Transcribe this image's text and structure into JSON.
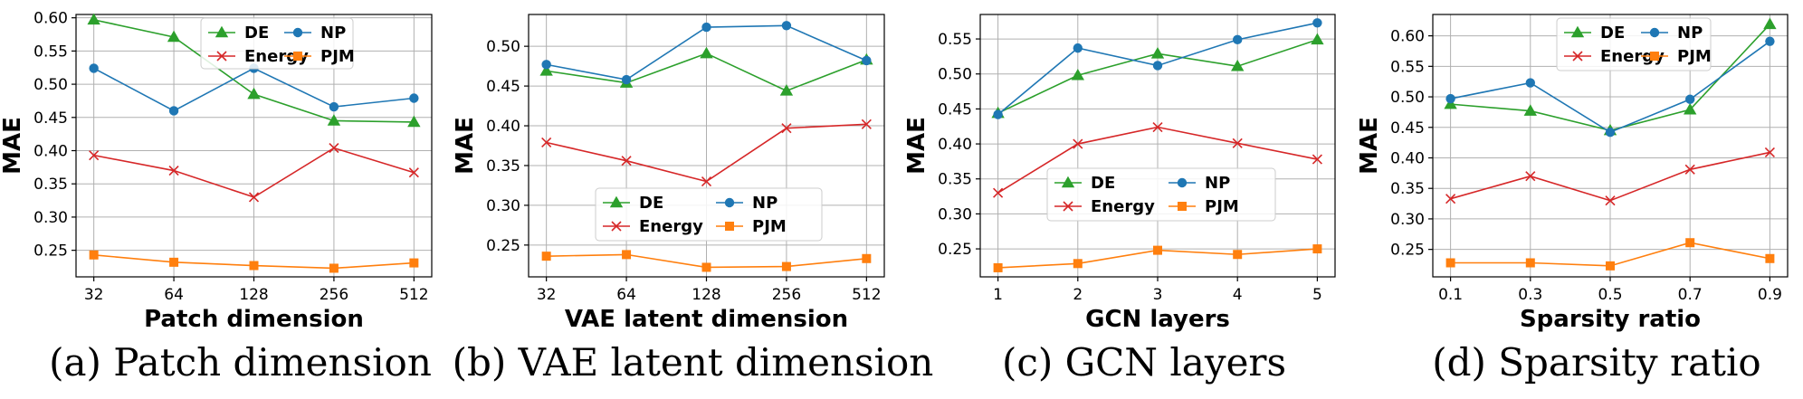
{
  "chart_data": [
    {
      "type": "line",
      "caption": "(a) Patch dimension",
      "xlabel": "Patch dimension",
      "ylabel": "MAE",
      "categories": [
        "32",
        "64",
        "128",
        "256",
        "512"
      ],
      "ylim": [
        0.21,
        0.605
      ],
      "yticks": [
        "0.25",
        "0.30",
        "0.35",
        "0.40",
        "0.45",
        "0.50",
        "0.55",
        "0.60"
      ],
      "legend_position": "top-right",
      "series": [
        {
          "name": "DE",
          "color": "#2ca02c",
          "marker": "triangle",
          "values": [
            0.597,
            0.571,
            0.485,
            0.445,
            0.443
          ]
        },
        {
          "name": "Energy",
          "color": "#d62728",
          "marker": "x",
          "values": [
            0.393,
            0.37,
            0.33,
            0.404,
            0.367
          ]
        },
        {
          "name": "NP",
          "color": "#1f77b4",
          "marker": "circle",
          "values": [
            0.524,
            0.46,
            0.524,
            0.466,
            0.479
          ]
        },
        {
          "name": "PJM",
          "color": "#ff7f0e",
          "marker": "square",
          "values": [
            0.243,
            0.232,
            0.227,
            0.223,
            0.231
          ]
        }
      ]
    },
    {
      "type": "line",
      "caption": "(b) VAE latent dimension",
      "xlabel": "VAE latent dimension",
      "ylabel": "MAE",
      "categories": [
        "32",
        "64",
        "128",
        "256",
        "512"
      ],
      "ylim": [
        0.21,
        0.54
      ],
      "yticks": [
        "0.25",
        "0.30",
        "0.35",
        "0.40",
        "0.45",
        "0.50"
      ],
      "legend_position": "lower-center",
      "series": [
        {
          "name": "DE",
          "color": "#2ca02c",
          "marker": "triangle",
          "values": [
            0.469,
            0.454,
            0.491,
            0.444,
            0.483
          ]
        },
        {
          "name": "Energy",
          "color": "#d62728",
          "marker": "x",
          "values": [
            0.379,
            0.356,
            0.33,
            0.397,
            0.402
          ]
        },
        {
          "name": "NP",
          "color": "#1f77b4",
          "marker": "circle",
          "values": [
            0.477,
            0.458,
            0.524,
            0.526,
            0.482
          ]
        },
        {
          "name": "PJM",
          "color": "#ff7f0e",
          "marker": "square",
          "values": [
            0.236,
            0.238,
            0.222,
            0.223,
            0.233
          ]
        }
      ]
    },
    {
      "type": "line",
      "caption": "(c) GCN layers",
      "xlabel": "GCN layers",
      "ylabel": "MAE",
      "categories": [
        "1",
        "2",
        "3",
        "4",
        "5"
      ],
      "ylim": [
        0.21,
        0.585
      ],
      "yticks": [
        "0.25",
        "0.30",
        "0.35",
        "0.40",
        "0.45",
        "0.50",
        "0.55"
      ],
      "legend_position": "lower-center",
      "series": [
        {
          "name": "DE",
          "color": "#2ca02c",
          "marker": "triangle",
          "values": [
            0.444,
            0.498,
            0.529,
            0.511,
            0.549
          ]
        },
        {
          "name": "Energy",
          "color": "#d62728",
          "marker": "x",
          "values": [
            0.33,
            0.4,
            0.424,
            0.401,
            0.378
          ]
        },
        {
          "name": "NP",
          "color": "#1f77b4",
          "marker": "circle",
          "values": [
            0.442,
            0.537,
            0.512,
            0.549,
            0.573
          ]
        },
        {
          "name": "PJM",
          "color": "#ff7f0e",
          "marker": "square",
          "values": [
            0.223,
            0.229,
            0.248,
            0.242,
            0.25
          ]
        }
      ]
    },
    {
      "type": "line",
      "caption": "(d) Sparsity ratio",
      "xlabel": "Sparsity ratio",
      "ylabel": "MAE",
      "categories": [
        "0.1",
        "0.3",
        "0.5",
        "0.7",
        "0.9"
      ],
      "ylim": [
        0.205,
        0.635
      ],
      "yticks": [
        "0.25",
        "0.30",
        "0.35",
        "0.40",
        "0.45",
        "0.50",
        "0.55",
        "0.60"
      ],
      "legend_position": "top-right",
      "series": [
        {
          "name": "DE",
          "color": "#2ca02c",
          "marker": "triangle",
          "values": [
            0.488,
            0.477,
            0.445,
            0.479,
            0.619
          ]
        },
        {
          "name": "Energy",
          "color": "#d62728",
          "marker": "x",
          "values": [
            0.333,
            0.37,
            0.33,
            0.381,
            0.409
          ]
        },
        {
          "name": "NP",
          "color": "#1f77b4",
          "marker": "circle",
          "values": [
            0.497,
            0.523,
            0.442,
            0.496,
            0.591
          ]
        },
        {
          "name": "PJM",
          "color": "#ff7f0e",
          "marker": "square",
          "values": [
            0.228,
            0.228,
            0.223,
            0.261,
            0.235
          ]
        }
      ]
    }
  ]
}
